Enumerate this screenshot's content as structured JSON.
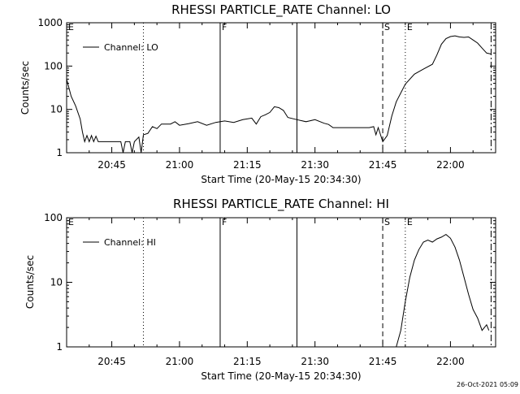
{
  "timestamp": "26-Oct-2021 05:09",
  "chart_data": [
    {
      "type": "line",
      "title": "RHESSI PARTICLE_RATE Channel: LO",
      "xlabel": "Start Time (20-May-15 20:34:30)",
      "ylabel": "Counts/sec",
      "yscale": "log",
      "xlim": [
        "20:35",
        "22:10"
      ],
      "ylim": [
        1,
        1000
      ],
      "x_ticks": [
        "20:45",
        "21:00",
        "21:15",
        "21:30",
        "21:45",
        "22:00"
      ],
      "y_ticks": [
        "1",
        "10",
        "100",
        "1000"
      ],
      "legend": {
        "entries": [
          "Channel: LO"
        ],
        "placement": "top-left"
      },
      "markers": [
        {
          "time": "20:35",
          "label": "E",
          "style": "none"
        },
        {
          "time": "20:52",
          "label": "",
          "style": "dotted"
        },
        {
          "time": "21:09",
          "label": "F",
          "style": "solid"
        },
        {
          "time": "21:26",
          "label": "",
          "style": "solid"
        },
        {
          "time": "21:45",
          "label": "S",
          "style": "dashed"
        },
        {
          "time": "21:50",
          "label": "E",
          "style": "dotted"
        },
        {
          "time": "22:09",
          "label": "",
          "style": "dashdot"
        }
      ],
      "series": [
        {
          "name": "Channel: LO",
          "points": [
            [
              "20:35",
              50
            ],
            [
              "20:36",
              20
            ],
            [
              "20:37",
              12
            ],
            [
              "20:38",
              6
            ],
            [
              "20:38.5",
              3
            ],
            [
              "20:39",
              1.8
            ],
            [
              "20:39.5",
              2.5
            ],
            [
              "20:40",
              1.8
            ],
            [
              "20:40.5",
              2.5
            ],
            [
              "20:41",
              1.8
            ],
            [
              "20:41.5",
              2.4
            ],
            [
              "20:42",
              1.8
            ],
            [
              "20:46",
              1.8
            ],
            [
              "20:47",
              1.8
            ],
            [
              "20:47.5",
              1.0
            ],
            [
              "20:48",
              1.8
            ],
            [
              "20:49",
              1.8
            ],
            [
              "20:49.5",
              1.0
            ],
            [
              "20:50",
              1.8
            ],
            [
              "20:51",
              2.3
            ],
            [
              "20:51.5",
              1.0
            ],
            [
              "20:52",
              2.6
            ],
            [
              "20:53",
              2.8
            ],
            [
              "20:54",
              4.0
            ],
            [
              "20:55",
              3.6
            ],
            [
              "20:56",
              4.6
            ],
            [
              "20:58",
              4.6
            ],
            [
              "20:59",
              5.2
            ],
            [
              "21:00",
              4.3
            ],
            [
              "21:02",
              4.7
            ],
            [
              "21:04",
              5.2
            ],
            [
              "21:06",
              4.3
            ],
            [
              "21:08",
              5.0
            ],
            [
              "21:10",
              5.4
            ],
            [
              "21:12",
              5.0
            ],
            [
              "21:14",
              5.8
            ],
            [
              "21:16",
              6.3
            ],
            [
              "21:17",
              4.6
            ],
            [
              "21:18",
              6.8
            ],
            [
              "21:19",
              7.5
            ],
            [
              "21:20",
              8.5
            ],
            [
              "21:21",
              11.5
            ],
            [
              "21:22",
              11.0
            ],
            [
              "21:23",
              9.5
            ],
            [
              "21:24",
              6.5
            ],
            [
              "21:26",
              5.8
            ],
            [
              "21:28",
              5.2
            ],
            [
              "21:30",
              5.8
            ],
            [
              "21:32",
              4.8
            ],
            [
              "21:33",
              4.5
            ],
            [
              "21:34",
              3.8
            ],
            [
              "21:42",
              3.8
            ],
            [
              "21:43",
              4.0
            ],
            [
              "21:43.5",
              2.6
            ],
            [
              "21:44",
              3.8
            ],
            [
              "21:45",
              1.8
            ],
            [
              "21:46",
              2.5
            ],
            [
              "21:47",
              7.0
            ],
            [
              "21:48",
              15
            ],
            [
              "21:50",
              38
            ],
            [
              "21:52",
              65
            ],
            [
              "21:54",
              85
            ],
            [
              "21:56",
              110
            ],
            [
              "21:57",
              180
            ],
            [
              "21:58",
              320
            ],
            [
              "21:59",
              430
            ],
            [
              "22:00",
              480
            ],
            [
              "22:01",
              500
            ],
            [
              "22:02",
              470
            ],
            [
              "22:03",
              460
            ],
            [
              "22:04",
              470
            ],
            [
              "22:05",
              400
            ],
            [
              "22:06",
              340
            ],
            [
              "22:07",
              260
            ],
            [
              "22:08",
              200
            ],
            [
              "22:09",
              190
            ]
          ]
        }
      ]
    },
    {
      "type": "line",
      "title": "RHESSI PARTICLE_RATE Channel: HI",
      "xlabel": "Start Time (20-May-15 20:34:30)",
      "ylabel": "Counts/sec",
      "yscale": "log",
      "xlim": [
        "20:35",
        "22:10"
      ],
      "ylim": [
        1,
        100
      ],
      "x_ticks": [
        "20:45",
        "21:00",
        "21:15",
        "21:30",
        "21:45",
        "22:00"
      ],
      "y_ticks": [
        "1",
        "10",
        "100"
      ],
      "legend": {
        "entries": [
          "Channel: HI"
        ],
        "placement": "top-left"
      },
      "markers": [
        {
          "time": "20:35",
          "label": "E",
          "style": "none"
        },
        {
          "time": "20:52",
          "label": "",
          "style": "dotted"
        },
        {
          "time": "21:09",
          "label": "F",
          "style": "solid"
        },
        {
          "time": "21:26",
          "label": "",
          "style": "solid"
        },
        {
          "time": "21:45",
          "label": "S",
          "style": "dashed"
        },
        {
          "time": "21:50",
          "label": "E",
          "style": "dotted"
        },
        {
          "time": "22:09",
          "label": "",
          "style": "dashdot"
        }
      ],
      "series": [
        {
          "name": "Channel: HI",
          "points": [
            [
              "21:48",
              1.0
            ],
            [
              "21:49",
              1.8
            ],
            [
              "21:50",
              5.0
            ],
            [
              "21:51",
              12
            ],
            [
              "21:52",
              22
            ],
            [
              "21:53",
              32
            ],
            [
              "21:54",
              42
            ],
            [
              "21:55",
              45
            ],
            [
              "21:56",
              42
            ],
            [
              "21:57",
              47
            ],
            [
              "21:58",
              50
            ],
            [
              "21:59",
              55
            ],
            [
              "22:00",
              48
            ],
            [
              "22:01",
              35
            ],
            [
              "22:02",
              22
            ],
            [
              "22:03",
              12
            ],
            [
              "22:04",
              6.5
            ],
            [
              "22:05",
              3.8
            ],
            [
              "22:06",
              2.8
            ],
            [
              "22:07",
              1.8
            ],
            [
              "22:08",
              2.2
            ],
            [
              "22:08.5",
              1.8
            ]
          ]
        }
      ]
    }
  ]
}
